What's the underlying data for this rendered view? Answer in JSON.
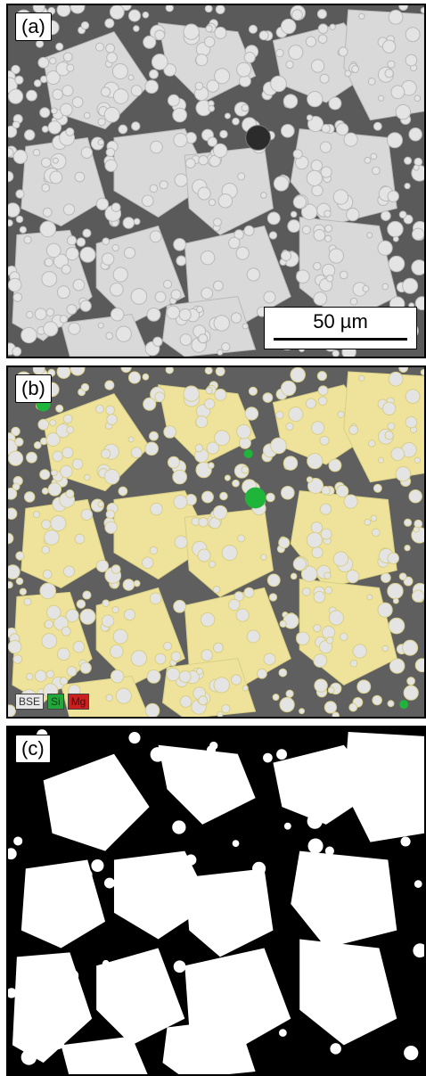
{
  "panels": [
    {
      "label": "(a)"
    },
    {
      "label": "(b)"
    },
    {
      "label": "(c)"
    }
  ],
  "scalebar": {
    "text": "50 µm"
  },
  "legend": [
    {
      "text": "BSE",
      "color": "#e8e8e8",
      "fg": "#333333"
    },
    {
      "text": "Si",
      "color": "#22a83a",
      "fg": "#0a3f12"
    },
    {
      "text": "Mg",
      "color": "#cc2020",
      "fg": "#4a0808"
    }
  ],
  "colors": {
    "matrix_dark": "#2a2a2a",
    "particle_gray": "#d9d9d9",
    "particle_yellow": "#efe39b",
    "si_green": "#1fb53a",
    "binary_white": "#ffffff",
    "binary_black": "#000000"
  }
}
